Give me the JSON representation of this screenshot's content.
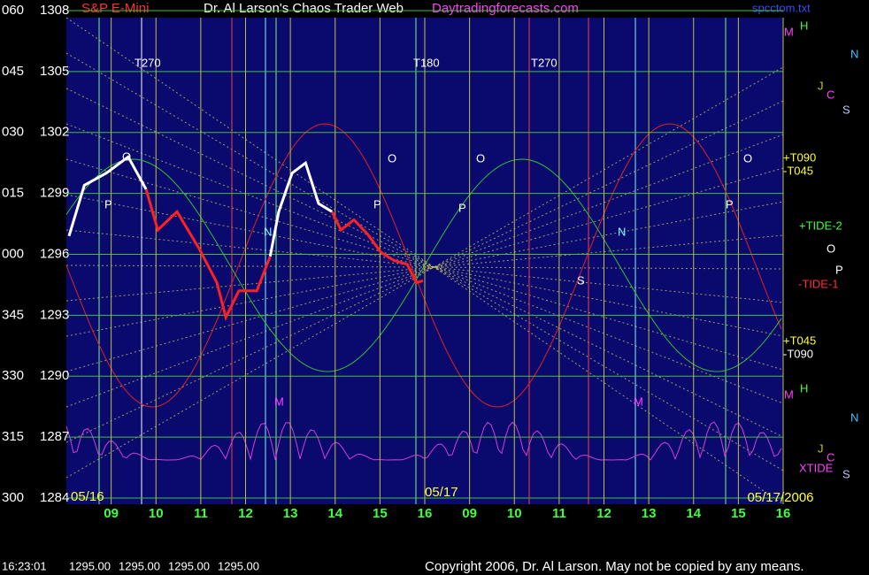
{
  "chart_data": {
    "type": "line",
    "title_parts": [
      "S&P E-Mini",
      "Dr. Al Larson's Chaos Trader Web",
      "Daytradingforecasts.com"
    ],
    "file_label": "spcctom.txt",
    "xlim": [
      0,
      16
    ],
    "ylim": [
      1284,
      1308
    ],
    "yticks": [
      1308,
      1305,
      1302,
      1299,
      1296,
      1293,
      1290,
      1287,
      1284
    ],
    "angle_labels": [
      "060",
      "045",
      "030",
      "015",
      "000",
      "345",
      "330",
      "315",
      "300"
    ],
    "xticks": [
      {
        "value": 1,
        "label": "09"
      },
      {
        "value": 2,
        "label": "10"
      },
      {
        "value": 3,
        "label": "11"
      },
      {
        "value": 4,
        "label": "12"
      },
      {
        "value": 5,
        "label": "13"
      },
      {
        "value": 6,
        "label": "14"
      },
      {
        "value": 7,
        "label": "15"
      },
      {
        "value": 8,
        "label": "16"
      },
      {
        "value": 9,
        "label": "09"
      },
      {
        "value": 10,
        "label": "10"
      },
      {
        "value": 11,
        "label": "11"
      },
      {
        "value": 12,
        "label": "12"
      },
      {
        "value": 13,
        "label": "13"
      },
      {
        "value": 14,
        "label": "14"
      },
      {
        "value": 15,
        "label": "15"
      },
      {
        "value": 16,
        "label": "16"
      }
    ],
    "dates": [
      "05/16",
      "05/17",
      "05/17/2006"
    ],
    "grid": true,
    "x": [
      0.06,
      0.4,
      0.89,
      1.38,
      1.78,
      2.04,
      2.47,
      2.96,
      3.36,
      3.56,
      3.85,
      4.25,
      4.55,
      4.74,
      5.04,
      5.34,
      5.63,
      5.93,
      6.13,
      6.42,
      6.72,
      7.02,
      7.31,
      7.61,
      7.81,
      7.96
    ],
    "series": [
      {
        "color": "#ffffff",
        "values": [
          1296.9,
          1299.4,
          1300.0,
          1300.8,
          1299.2,
          null,
          null,
          null,
          null,
          null,
          null,
          null,
          1295.9,
          1298.1,
          1300.0,
          1300.5,
          1298.5,
          1298.1,
          null,
          null,
          null,
          null,
          null,
          null,
          null,
          null
        ]
      },
      {
        "color": "#ff2020",
        "values": [
          null,
          null,
          null,
          null,
          1299.2,
          1297.2,
          1298.1,
          1296.3,
          1294.6,
          1292.9,
          1294.2,
          1294.2,
          1295.9,
          null,
          null,
          null,
          null,
          1298.1,
          1297.2,
          1297.7,
          1297.0,
          1296.1,
          1295.7,
          1295.5,
          1294.6,
          1294.7
        ]
      }
    ],
    "annotations": [
      "T270",
      "T180",
      "T270",
      "M",
      "H",
      "N",
      "J",
      "C",
      "S",
      "+T090",
      "-T045",
      "+TIDE-2",
      "O",
      "P",
      "-TIDE-1",
      "+T045",
      "-T090",
      "M",
      "H",
      "N",
      "J",
      "C",
      "XTIDE",
      "S",
      "O",
      "P",
      "O",
      "P",
      "O",
      "P",
      "O",
      "P",
      "N",
      "N",
      "S",
      "M",
      "M"
    ],
    "status": {
      "time": "16:23:01",
      "prices": [
        "1295.00",
        "1295.00",
        "1295.00",
        "1295.00"
      ]
    },
    "copyright": "Copyright 2006, Dr. Al Larson. May not be copied by any means."
  }
}
